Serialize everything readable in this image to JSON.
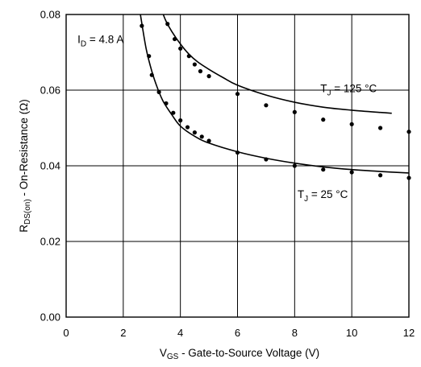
{
  "chart_data": {
    "type": "line",
    "title": "",
    "xlabel": {
      "main": "V",
      "sub": "GS",
      "rest": " - Gate-to-Source Voltage (V)"
    },
    "ylabel": {
      "main": "R",
      "sub": "DS(on)",
      "rest": " - On-Resistance (Ω)"
    },
    "xlim": [
      0,
      12
    ],
    "ylim": [
      0,
      0.08
    ],
    "x_ticks": [
      0,
      2,
      4,
      6,
      8,
      10,
      12
    ],
    "x_tick_labels": [
      "0",
      "2",
      "4",
      "6",
      "8",
      "10",
      "12"
    ],
    "y_ticks": [
      0.0,
      0.02,
      0.04,
      0.06,
      0.08
    ],
    "y_tick_labels": [
      "0.00",
      "0.02",
      "0.04",
      "0.06",
      "0.08"
    ],
    "grid": true,
    "annotations": [
      {
        "id": "id-label",
        "main": "I",
        "sub": "D",
        "rest": " = 4.8 A",
        "x": 0.4,
        "y": 0.0725
      },
      {
        "id": "tj125-label",
        "main": "T",
        "sub": "J",
        "rest": " = 125 °C",
        "x": 8.9,
        "y": 0.0595
      },
      {
        "id": "tj25-label",
        "main": "T",
        "sub": "J",
        "rest": " = 25 °C",
        "x": 8.1,
        "y": 0.0315
      }
    ],
    "series": [
      {
        "name": "T_J = 125 °C",
        "curve": {
          "x": [
            3.4,
            3.5,
            3.7,
            4.0,
            4.3,
            4.6,
            5.0,
            5.5,
            6.0,
            7.0,
            8.0,
            9.0,
            10.0,
            11.0,
            11.4
          ],
          "y": [
            0.08,
            0.0782,
            0.0755,
            0.0722,
            0.0695,
            0.0675,
            0.0655,
            0.0633,
            0.0613,
            0.0587,
            0.0568,
            0.0555,
            0.0547,
            0.0541,
            0.0539
          ]
        },
        "points": {
          "x": [
            3.55,
            3.8,
            4.0,
            4.3,
            4.5,
            4.7,
            5.0,
            6.0,
            7.0,
            8.0,
            9.0,
            10.0,
            11.0,
            12.0
          ],
          "y": [
            0.0775,
            0.0735,
            0.071,
            0.069,
            0.0668,
            0.065,
            0.0637,
            0.059,
            0.056,
            0.0542,
            0.0522,
            0.051,
            0.05,
            0.049
          ]
        }
      },
      {
        "name": "T_J = 25 °C",
        "curve": {
          "x": [
            2.6,
            2.8,
            3.0,
            3.2,
            3.4,
            3.7,
            4.0,
            4.5,
            5.0,
            6.0,
            7.0,
            8.0,
            9.0,
            10.0,
            11.0,
            12.0
          ],
          "y": [
            0.08,
            0.071,
            0.065,
            0.0605,
            0.057,
            0.0535,
            0.0505,
            0.0478,
            0.046,
            0.0437,
            0.042,
            0.0407,
            0.0397,
            0.039,
            0.0385,
            0.0381
          ]
        },
        "points": {
          "x": [
            2.65,
            2.9,
            3.0,
            3.25,
            3.5,
            3.75,
            4.0,
            4.25,
            4.5,
            4.75,
            5.0,
            6.0,
            7.0,
            8.0,
            9.0,
            10.0,
            11.0,
            12.0
          ],
          "y": [
            0.077,
            0.069,
            0.064,
            0.0595,
            0.0565,
            0.054,
            0.052,
            0.0502,
            0.0488,
            0.0477,
            0.0466,
            0.0435,
            0.0417,
            0.04,
            0.039,
            0.0383,
            0.0375,
            0.0368
          ]
        }
      }
    ]
  }
}
